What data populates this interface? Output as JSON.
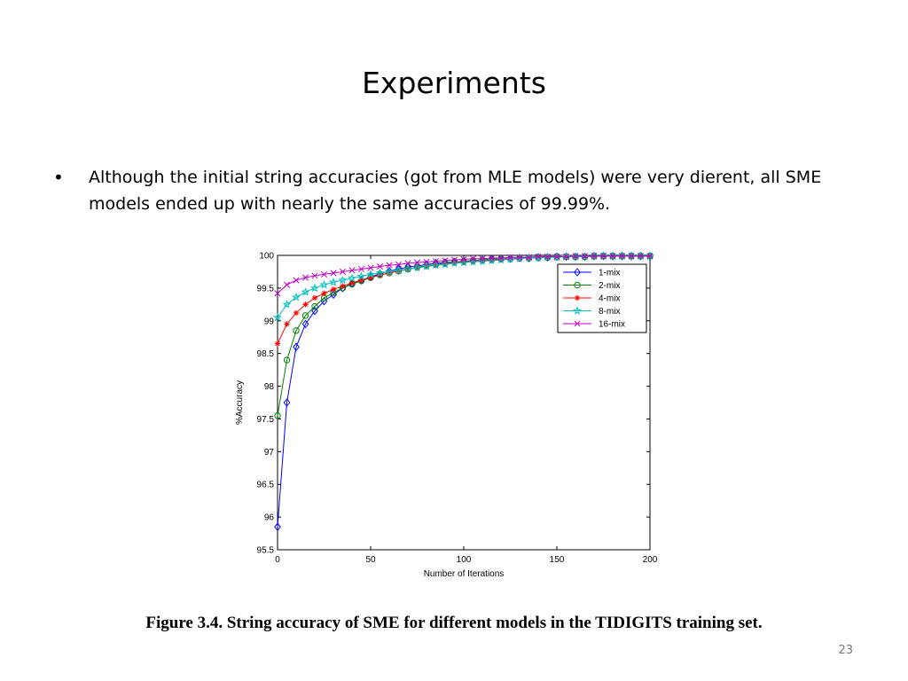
{
  "slide": {
    "title": "Experiments",
    "bullet": "Although the initial string accuracies (got from MLE models) were very dierent, all SME models ended up with nearly the same accuracies of 99.99%.",
    "caption": "Figure 3.4. String accuracy of SME for different models in the TIDIGITS training set.",
    "page_number": "23"
  },
  "chart_data": {
    "type": "line",
    "title": "",
    "xlabel": "Number of Iterations",
    "ylabel": "%Accuracy",
    "xlim": [
      0,
      200
    ],
    "ylim": [
      95.5,
      100
    ],
    "xticks": [
      "0",
      "50",
      "100",
      "150",
      "200"
    ],
    "yticks": [
      "95.5",
      "96",
      "96.5",
      "97",
      "97.5",
      "98",
      "98.5",
      "99",
      "99.5",
      "100"
    ],
    "grid": false,
    "legend_position": "top-right",
    "x": [
      0,
      5,
      10,
      15,
      20,
      25,
      30,
      35,
      40,
      45,
      50,
      55,
      60,
      65,
      70,
      75,
      80,
      85,
      90,
      95,
      100,
      105,
      110,
      115,
      120,
      125,
      130,
      135,
      140,
      145,
      150,
      155,
      160,
      165,
      170,
      175,
      180,
      185,
      190,
      195,
      200
    ],
    "series": [
      {
        "name": "1-mix",
        "color": "#0000ff",
        "marker": "diamond",
        "values": [
          95.85,
          97.75,
          98.6,
          98.95,
          99.15,
          99.3,
          99.4,
          99.5,
          99.57,
          99.62,
          99.67,
          99.72,
          99.76,
          99.79,
          99.82,
          99.84,
          99.86,
          99.88,
          99.89,
          99.9,
          99.91,
          99.92,
          99.93,
          99.94,
          99.95,
          99.95,
          99.96,
          99.96,
          99.97,
          99.97,
          99.98,
          99.98,
          99.98,
          99.98,
          99.99,
          99.99,
          99.99,
          99.99,
          99.99,
          99.99,
          99.99
        ]
      },
      {
        "name": "2-mix",
        "color": "#008000",
        "marker": "circle",
        "values": [
          97.55,
          98.4,
          98.85,
          99.08,
          99.22,
          99.35,
          99.43,
          99.5,
          99.56,
          99.61,
          99.66,
          99.7,
          99.73,
          99.76,
          99.79,
          99.82,
          99.84,
          99.86,
          99.88,
          99.9,
          99.91,
          99.92,
          99.93,
          99.94,
          99.95,
          99.95,
          99.96,
          99.96,
          99.97,
          99.97,
          99.98,
          99.98,
          99.98,
          99.98,
          99.99,
          99.99,
          99.99,
          99.99,
          99.99,
          99.99,
          99.99
        ]
      },
      {
        "name": "4-mix",
        "color": "#ff0000",
        "marker": "star",
        "values": [
          98.65,
          98.95,
          99.12,
          99.25,
          99.35,
          99.42,
          99.48,
          99.53,
          99.58,
          99.62,
          99.66,
          99.7,
          99.73,
          99.76,
          99.79,
          99.81,
          99.83,
          99.85,
          99.87,
          99.89,
          99.9,
          99.91,
          99.92,
          99.93,
          99.94,
          99.95,
          99.96,
          99.96,
          99.97,
          99.97,
          99.98,
          99.98,
          99.98,
          99.98,
          99.99,
          99.99,
          99.99,
          99.99,
          99.99,
          99.99,
          99.99
        ]
      },
      {
        "name": "8-mix",
        "color": "#00bfbf",
        "marker": "pentagram",
        "values": [
          99.05,
          99.25,
          99.36,
          99.44,
          99.5,
          99.55,
          99.59,
          99.62,
          99.65,
          99.68,
          99.71,
          99.73,
          99.75,
          99.77,
          99.79,
          99.81,
          99.83,
          99.85,
          99.86,
          99.88,
          99.89,
          99.9,
          99.91,
          99.92,
          99.93,
          99.94,
          99.95,
          99.96,
          99.96,
          99.97,
          99.97,
          99.98,
          99.98,
          99.98,
          99.99,
          99.99,
          99.99,
          99.99,
          99.99,
          99.99,
          99.99
        ]
      },
      {
        "name": "16-mix",
        "color": "#bf00bf",
        "marker": "x",
        "values": [
          99.42,
          99.55,
          99.62,
          99.66,
          99.69,
          99.71,
          99.73,
          99.75,
          99.77,
          99.79,
          99.81,
          99.83,
          99.85,
          99.86,
          99.88,
          99.89,
          99.9,
          99.91,
          99.92,
          99.93,
          99.94,
          99.95,
          99.95,
          99.96,
          99.96,
          99.97,
          99.97,
          99.97,
          99.98,
          99.98,
          99.98,
          99.98,
          99.99,
          99.99,
          99.99,
          99.99,
          99.99,
          99.99,
          99.99,
          99.99,
          99.99
        ]
      }
    ]
  }
}
